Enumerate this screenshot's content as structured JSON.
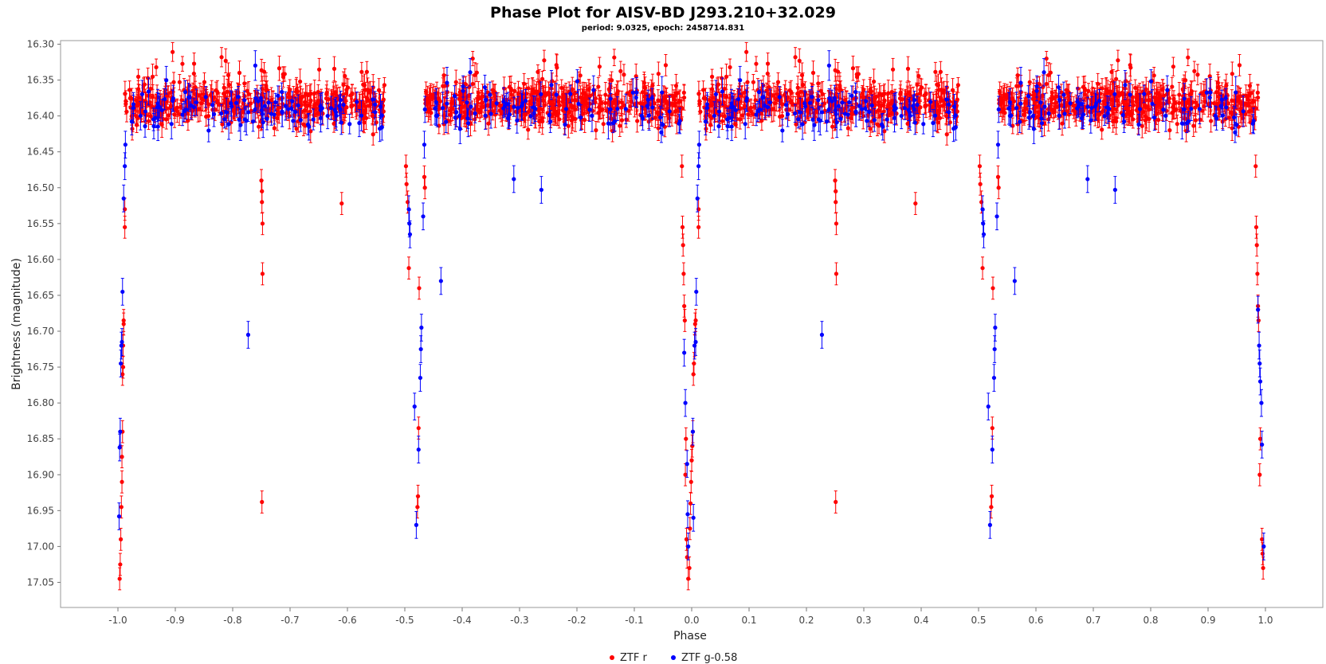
{
  "chart_data": {
    "type": "scatter",
    "title": "Phase Plot for AISV-BD J293.210+32.029",
    "subtitle": "period: 9.0325, epoch: 2458714.831",
    "xlabel": "Phase",
    "ylabel": "Brightness (magnitude)",
    "xlim": [
      -1.1,
      1.1
    ],
    "ylim": [
      16.295,
      17.085
    ],
    "y_inverted": true,
    "x_ticks": [
      -1.0,
      -0.9,
      -0.8,
      -0.7,
      -0.6,
      -0.5,
      -0.4,
      -0.3,
      -0.2,
      -0.1,
      0.0,
      0.1,
      0.2,
      0.3,
      0.4,
      0.5,
      0.6,
      0.7,
      0.8,
      0.9,
      1.0
    ],
    "x_tick_labels": [
      "-1.0",
      "-0.9",
      "-0.8",
      "-0.7",
      "-0.6",
      "-0.5",
      "-0.4",
      "-0.3",
      "-0.2",
      "-0.1",
      "0.0",
      "0.1",
      "0.2",
      "0.3",
      "0.4",
      "0.5",
      "0.6",
      "0.7",
      "0.8",
      "0.9",
      "1.0"
    ],
    "y_ticks": [
      16.3,
      16.35,
      16.4,
      16.45,
      16.5,
      16.55,
      16.6,
      16.65,
      16.7,
      16.75,
      16.8,
      16.85,
      16.9,
      16.95,
      17.0,
      17.05
    ],
    "y_tick_labels": [
      "16.30",
      "16.35",
      "16.40",
      "16.45",
      "16.50",
      "16.55",
      "16.60",
      "16.65",
      "16.70",
      "16.75",
      "16.80",
      "16.85",
      "16.90",
      "16.95",
      "17.00",
      "17.05"
    ],
    "grid": false,
    "legend_position": "bottom-center",
    "series": [
      {
        "name": "ZTF r",
        "color": "#ff0000",
        "baseline": 16.383,
        "scatter": 0.022,
        "error": 0.014,
        "count_per_cycle": 900,
        "eclipse_points": [
          [
            -0.997,
            17.045
          ],
          [
            -0.996,
            17.025
          ],
          [
            -0.995,
            16.99
          ],
          [
            -0.994,
            16.945
          ],
          [
            -0.993,
            16.91
          ],
          [
            -0.993,
            16.875
          ],
          [
            -0.992,
            16.84
          ],
          [
            -0.992,
            16.76
          ],
          [
            -0.991,
            16.75
          ],
          [
            -0.991,
            16.72
          ],
          [
            -0.99,
            16.69
          ],
          [
            -0.99,
            16.685
          ],
          [
            -0.988,
            16.555
          ],
          [
            -0.988,
            16.53
          ],
          [
            -0.75,
            16.49
          ],
          [
            -0.749,
            16.505
          ],
          [
            -0.749,
            16.52
          ],
          [
            -0.748,
            16.55
          ],
          [
            -0.748,
            16.62
          ],
          [
            -0.749,
            16.938
          ],
          [
            -0.61,
            16.522
          ],
          [
            -0.498,
            16.47
          ],
          [
            -0.497,
            16.495
          ],
          [
            -0.495,
            16.52
          ],
          [
            -0.493,
            16.612
          ],
          [
            -0.478,
            16.945
          ],
          [
            -0.477,
            16.93
          ],
          [
            -0.476,
            16.835
          ],
          [
            -0.475,
            16.64
          ],
          [
            -0.466,
            16.485
          ],
          [
            -0.465,
            16.5
          ],
          [
            -0.017,
            16.47
          ],
          [
            -0.016,
            16.555
          ],
          [
            -0.015,
            16.58
          ],
          [
            -0.014,
            16.62
          ],
          [
            -0.013,
            16.665
          ],
          [
            -0.012,
            16.685
          ],
          [
            -0.011,
            16.9
          ],
          [
            -0.01,
            16.85
          ],
          [
            -0.009,
            16.99
          ],
          [
            -0.008,
            17.015
          ],
          [
            -0.006,
            17.045
          ],
          [
            -0.004,
            17.03
          ],
          [
            -0.003,
            16.975
          ],
          [
            -0.002,
            16.94
          ],
          [
            -0.001,
            16.91
          ],
          [
            0.0,
            16.88
          ],
          [
            0.001,
            16.86
          ],
          [
            0.002,
            16.84
          ],
          [
            0.003,
            16.76
          ],
          [
            0.004,
            16.745
          ],
          [
            0.005,
            16.72
          ],
          [
            0.006,
            16.69
          ],
          [
            0.007,
            16.685
          ],
          [
            0.012,
            16.555
          ],
          [
            0.012,
            16.53
          ],
          [
            0.25,
            16.49
          ],
          [
            0.251,
            16.505
          ],
          [
            0.251,
            16.52
          ],
          [
            0.252,
            16.55
          ],
          [
            0.252,
            16.62
          ],
          [
            0.251,
            16.938
          ],
          [
            0.39,
            16.522
          ],
          [
            0.502,
            16.47
          ],
          [
            0.503,
            16.495
          ],
          [
            0.505,
            16.52
          ],
          [
            0.507,
            16.612
          ],
          [
            0.522,
            16.945
          ],
          [
            0.523,
            16.93
          ],
          [
            0.524,
            16.835
          ],
          [
            0.525,
            16.64
          ],
          [
            0.534,
            16.485
          ],
          [
            0.535,
            16.5
          ],
          [
            0.983,
            16.47
          ],
          [
            0.984,
            16.555
          ],
          [
            0.985,
            16.58
          ],
          [
            0.986,
            16.62
          ],
          [
            0.987,
            16.665
          ],
          [
            0.988,
            16.685
          ],
          [
            0.99,
            16.9
          ],
          [
            0.991,
            16.85
          ],
          [
            0.994,
            16.99
          ],
          [
            0.995,
            17.01
          ],
          [
            0.996,
            17.03
          ]
        ]
      },
      {
        "name": "ZTF g-0.58",
        "color": "#0000ff",
        "baseline": 16.392,
        "scatter": 0.024,
        "error": 0.017,
        "count_per_cycle": 190,
        "eclipse_points": [
          [
            -0.998,
            16.958
          ],
          [
            -0.997,
            16.862
          ],
          [
            -0.996,
            16.84
          ],
          [
            -0.995,
            16.745
          ],
          [
            -0.994,
            16.72
          ],
          [
            -0.993,
            16.715
          ],
          [
            -0.992,
            16.645
          ],
          [
            -0.99,
            16.515
          ],
          [
            -0.988,
            16.47
          ],
          [
            -0.987,
            16.44
          ],
          [
            -0.773,
            16.705
          ],
          [
            -0.493,
            16.53
          ],
          [
            -0.492,
            16.55
          ],
          [
            -0.491,
            16.565
          ],
          [
            -0.483,
            16.805
          ],
          [
            -0.48,
            16.97
          ],
          [
            -0.476,
            16.865
          ],
          [
            -0.473,
            16.765
          ],
          [
            -0.472,
            16.725
          ],
          [
            -0.471,
            16.695
          ],
          [
            -0.468,
            16.54
          ],
          [
            -0.466,
            16.44
          ],
          [
            -0.437,
            16.63
          ],
          [
            -0.31,
            16.488
          ],
          [
            -0.262,
            16.503
          ],
          [
            -0.013,
            16.73
          ],
          [
            -0.011,
            16.8
          ],
          [
            -0.008,
            16.885
          ],
          [
            -0.007,
            16.955
          ],
          [
            -0.006,
            17.0
          ],
          [
            0.002,
            16.84
          ],
          [
            0.003,
            16.96
          ],
          [
            0.005,
            16.72
          ],
          [
            0.007,
            16.715
          ],
          [
            0.008,
            16.645
          ],
          [
            0.01,
            16.515
          ],
          [
            0.012,
            16.47
          ],
          [
            0.013,
            16.44
          ],
          [
            0.227,
            16.705
          ],
          [
            0.507,
            16.53
          ],
          [
            0.508,
            16.55
          ],
          [
            0.509,
            16.565
          ],
          [
            0.517,
            16.805
          ],
          [
            0.52,
            16.97
          ],
          [
            0.524,
            16.865
          ],
          [
            0.527,
            16.765
          ],
          [
            0.528,
            16.725
          ],
          [
            0.529,
            16.695
          ],
          [
            0.532,
            16.54
          ],
          [
            0.534,
            16.44
          ],
          [
            0.563,
            16.63
          ],
          [
            0.69,
            16.488
          ],
          [
            0.738,
            16.503
          ],
          [
            0.987,
            16.67
          ],
          [
            0.989,
            16.72
          ],
          [
            0.99,
            16.745
          ],
          [
            0.991,
            16.77
          ],
          [
            0.993,
            16.8
          ],
          [
            0.994,
            16.858
          ],
          [
            0.997,
            17.0
          ]
        ]
      }
    ]
  }
}
